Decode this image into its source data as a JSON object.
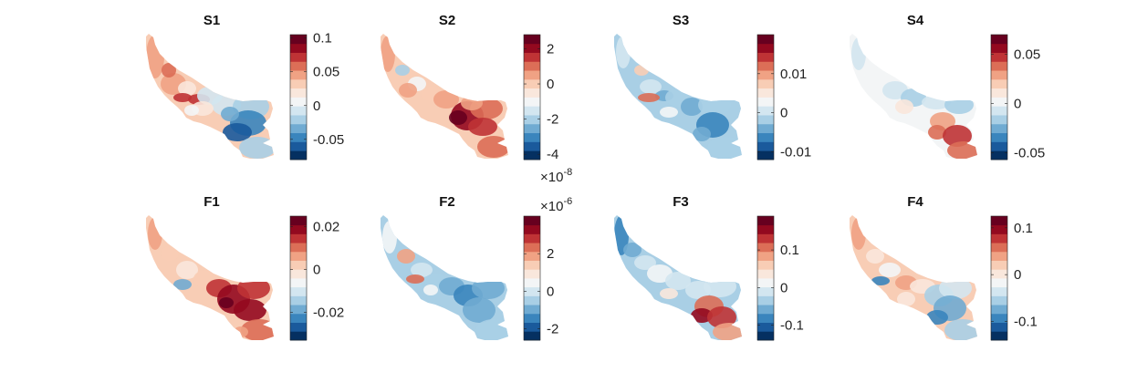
{
  "palette": [
    "#053061",
    "#1a5a9c",
    "#3a85bd",
    "#70abd2",
    "#a9cfe5",
    "#d3e6f0",
    "#f3f5f6",
    "#f9e7dc",
    "#f8cdb5",
    "#f0a284",
    "#dc6e57",
    "#bf3335",
    "#93091f",
    "#67001f"
  ],
  "chart_data": [
    {
      "type": "heatmap",
      "title": "S1",
      "clim": [
        -0.08,
        0.105
      ],
      "ticks": [
        -0.05,
        0,
        0.05,
        0.1
      ],
      "tick_labels": [
        "-0.05",
        "0",
        "0.05",
        "0.1"
      ],
      "exponent": "",
      "pattern": "s1"
    },
    {
      "type": "heatmap",
      "title": "S2",
      "clim": [
        -4.3,
        2.8
      ],
      "ticks": [
        -4,
        -2,
        0,
        2
      ],
      "tick_labels": [
        "-4",
        "-2",
        "0",
        "2"
      ],
      "exponent": "-8",
      "pattern": "s2"
    },
    {
      "type": "heatmap",
      "title": "S3",
      "clim": [
        -0.012,
        0.02
      ],
      "ticks": [
        -0.01,
        0,
        0.01
      ],
      "tick_labels": [
        "-0.01",
        "0",
        "0.01"
      ],
      "exponent": "",
      "pattern": "s3"
    },
    {
      "type": "heatmap",
      "title": "S4",
      "clim": [
        -0.057,
        0.07
      ],
      "ticks": [
        -0.05,
        0,
        0.05
      ],
      "tick_labels": [
        "-0.05",
        "0",
        "0.05"
      ],
      "exponent": "",
      "pattern": "s4"
    },
    {
      "type": "heatmap",
      "title": "F1",
      "clim": [
        -0.033,
        0.025
      ],
      "ticks": [
        -0.02,
        0,
        0.02
      ],
      "tick_labels": [
        "-0.02",
        "0",
        "0.02"
      ],
      "exponent": "",
      "pattern": "f1"
    },
    {
      "type": "heatmap",
      "title": "F2",
      "clim": [
        -2.6,
        4.0
      ],
      "ticks": [
        -2,
        0,
        2
      ],
      "tick_labels": [
        "-2",
        "0",
        "2"
      ],
      "exponent": "-6",
      "pattern": "f2"
    },
    {
      "type": "heatmap",
      "title": "F3",
      "clim": [
        -0.14,
        0.19
      ],
      "ticks": [
        -0.1,
        0,
        0.1
      ],
      "tick_labels": [
        "-0.1",
        "0",
        "0.1"
      ],
      "exponent": "",
      "pattern": "f3"
    },
    {
      "type": "heatmap",
      "title": "F4",
      "clim": [
        -0.14,
        0.125
      ],
      "ticks": [
        -0.1,
        0,
        0.1
      ],
      "tick_labels": [
        "-0.1",
        "0",
        "0.1"
      ],
      "exponent": "",
      "pattern": "f4"
    }
  ]
}
